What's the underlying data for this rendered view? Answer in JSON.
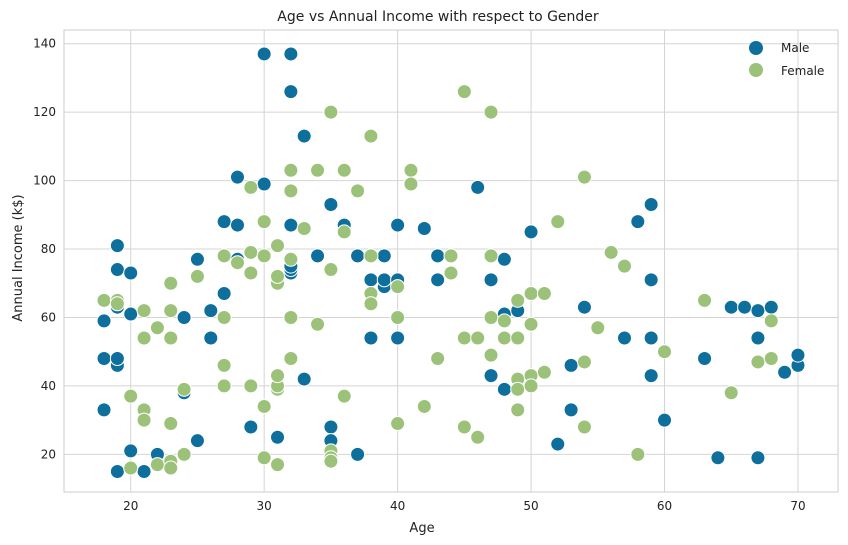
{
  "chart_data": {
    "type": "scatter",
    "title": "Age vs Annual Income with respect to Gender",
    "xlabel": "Age",
    "ylabel": "Annual Income (k$)",
    "xlim": [
      15,
      73
    ],
    "ylim": [
      9,
      144
    ],
    "xticks": [
      20,
      30,
      40,
      50,
      60,
      70
    ],
    "yticks": [
      20,
      40,
      60,
      80,
      100,
      120,
      140
    ],
    "grid": true,
    "legend_position": "top-right",
    "series": [
      {
        "name": "Male",
        "color": "#0e6e9c",
        "points": [
          [
            19,
            15
          ],
          [
            21,
            15
          ],
          [
            20,
            16
          ],
          [
            22,
            17
          ],
          [
            20,
            21
          ],
          [
            18,
            33
          ],
          [
            18,
            48
          ],
          [
            19,
            46
          ],
          [
            19,
            48
          ],
          [
            18,
            59
          ],
          [
            19,
            63
          ],
          [
            20,
            61
          ],
          [
            19,
            74
          ],
          [
            20,
            73
          ],
          [
            19,
            81
          ],
          [
            21,
            54
          ],
          [
            22,
            20
          ],
          [
            25,
            24
          ],
          [
            24,
            38
          ],
          [
            24,
            60
          ],
          [
            25,
            77
          ],
          [
            26,
            54
          ],
          [
            26,
            62
          ],
          [
            27,
            67
          ],
          [
            27,
            88
          ],
          [
            28,
            87
          ],
          [
            28,
            101
          ],
          [
            28,
            77
          ],
          [
            29,
            28
          ],
          [
            30,
            99
          ],
          [
            30,
            137
          ],
          [
            31,
            25
          ],
          [
            32,
            137
          ],
          [
            32,
            126
          ],
          [
            32,
            87
          ],
          [
            32,
            73
          ],
          [
            32,
            74
          ],
          [
            32,
            75
          ],
          [
            33,
            42
          ],
          [
            33,
            113
          ],
          [
            34,
            78
          ],
          [
            35,
            93
          ],
          [
            35,
            28
          ],
          [
            35,
            24
          ],
          [
            36,
            87
          ],
          [
            37,
            20
          ],
          [
            37,
            78
          ],
          [
            38,
            54
          ],
          [
            38,
            71
          ],
          [
            39,
            69
          ],
          [
            39,
            71
          ],
          [
            39,
            78
          ],
          [
            40,
            54
          ],
          [
            40,
            71
          ],
          [
            40,
            87
          ],
          [
            42,
            86
          ],
          [
            43,
            71
          ],
          [
            43,
            78
          ],
          [
            46,
            98
          ],
          [
            47,
            71
          ],
          [
            47,
            43
          ],
          [
            48,
            39
          ],
          [
            48,
            54
          ],
          [
            48,
            61
          ],
          [
            48,
            77
          ],
          [
            49,
            62
          ],
          [
            50,
            85
          ],
          [
            52,
            23
          ],
          [
            53,
            33
          ],
          [
            53,
            46
          ],
          [
            54,
            63
          ],
          [
            57,
            54
          ],
          [
            58,
            88
          ],
          [
            59,
            93
          ],
          [
            59,
            71
          ],
          [
            59,
            54
          ],
          [
            59,
            43
          ],
          [
            60,
            30
          ],
          [
            63,
            48
          ],
          [
            64,
            19
          ],
          [
            65,
            63
          ],
          [
            66,
            63
          ],
          [
            67,
            62
          ],
          [
            67,
            54
          ],
          [
            67,
            19
          ],
          [
            68,
            63
          ],
          [
            69,
            44
          ],
          [
            70,
            46
          ],
          [
            70,
            49
          ]
        ]
      },
      {
        "name": "Female",
        "color": "#9cc27a",
        "points": [
          [
            18,
            65
          ],
          [
            19,
            65
          ],
          [
            19,
            64
          ],
          [
            20,
            16
          ],
          [
            20,
            37
          ],
          [
            21,
            62
          ],
          [
            21,
            54
          ],
          [
            21,
            33
          ],
          [
            21,
            30
          ],
          [
            22,
            57
          ],
          [
            22,
            17
          ],
          [
            23,
            18
          ],
          [
            23,
            16
          ],
          [
            23,
            29
          ],
          [
            23,
            54
          ],
          [
            23,
            62
          ],
          [
            23,
            70
          ],
          [
            24,
            20
          ],
          [
            24,
            39
          ],
          [
            25,
            72
          ],
          [
            27,
            40
          ],
          [
            27,
            46
          ],
          [
            27,
            60
          ],
          [
            27,
            78
          ],
          [
            28,
            76
          ],
          [
            29,
            98
          ],
          [
            29,
            73
          ],
          [
            29,
            79
          ],
          [
            29,
            40
          ],
          [
            30,
            19
          ],
          [
            30,
            34
          ],
          [
            30,
            88
          ],
          [
            30,
            78
          ],
          [
            31,
            81
          ],
          [
            31,
            70
          ],
          [
            31,
            72
          ],
          [
            31,
            39
          ],
          [
            31,
            40
          ],
          [
            31,
            43
          ],
          [
            31,
            17
          ],
          [
            32,
            103
          ],
          [
            32,
            97
          ],
          [
            32,
            77
          ],
          [
            32,
            60
          ],
          [
            32,
            48
          ],
          [
            33,
            86
          ],
          [
            34,
            103
          ],
          [
            34,
            58
          ],
          [
            35,
            120
          ],
          [
            35,
            74
          ],
          [
            35,
            21
          ],
          [
            35,
            19
          ],
          [
            35,
            18
          ],
          [
            36,
            103
          ],
          [
            36,
            85
          ],
          [
            36,
            37
          ],
          [
            37,
            97
          ],
          [
            38,
            113
          ],
          [
            38,
            78
          ],
          [
            38,
            67
          ],
          [
            38,
            64
          ],
          [
            40,
            69
          ],
          [
            40,
            60
          ],
          [
            40,
            29
          ],
          [
            41,
            103
          ],
          [
            41,
            99
          ],
          [
            42,
            34
          ],
          [
            43,
            48
          ],
          [
            44,
            78
          ],
          [
            44,
            73
          ],
          [
            45,
            126
          ],
          [
            45,
            54
          ],
          [
            45,
            28
          ],
          [
            46,
            54
          ],
          [
            46,
            25
          ],
          [
            47,
            120
          ],
          [
            47,
            78
          ],
          [
            47,
            60
          ],
          [
            47,
            49
          ],
          [
            48,
            54
          ],
          [
            48,
            59
          ],
          [
            49,
            65
          ],
          [
            49,
            54
          ],
          [
            49,
            42
          ],
          [
            49,
            39
          ],
          [
            49,
            33
          ],
          [
            50,
            67
          ],
          [
            50,
            58
          ],
          [
            50,
            43
          ],
          [
            50,
            40
          ],
          [
            51,
            67
          ],
          [
            51,
            44
          ],
          [
            52,
            88
          ],
          [
            54,
            101
          ],
          [
            54,
            47
          ],
          [
            54,
            28
          ],
          [
            55,
            57
          ],
          [
            56,
            79
          ],
          [
            57,
            75
          ],
          [
            58,
            20
          ],
          [
            60,
            50
          ],
          [
            63,
            65
          ],
          [
            65,
            38
          ],
          [
            67,
            47
          ],
          [
            68,
            59
          ],
          [
            68,
            48
          ]
        ]
      }
    ]
  }
}
